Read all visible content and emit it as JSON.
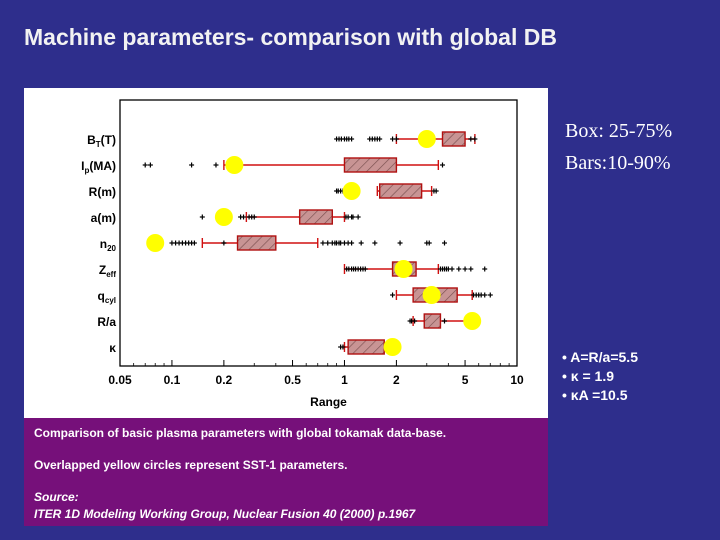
{
  "slide": {
    "title": "Machine parameters- comparison with global DB"
  },
  "legend_note": {
    "box": "Box: 25-75%",
    "bars": "Bars:10-90%"
  },
  "facts": [
    "• A=R/a=5.5",
    "• κ = 1.9",
    "• κA =10.5"
  ],
  "caption": {
    "line1": "Comparison of basic plasma parameters with global tokamak data-base.",
    "line2": "Overlapped yellow circles represent SST-1 parameters.",
    "line3": "Source:",
    "line4": "ITER 1D Modeling Working Group, Nuclear Fusion 40 (2000) p.1967"
  },
  "chart_data": {
    "type": "boxplot",
    "xlabel": "Range",
    "x_scale": "log",
    "xlim": [
      0.05,
      10
    ],
    "x_ticks": [
      0.05,
      0.1,
      0.2,
      0.5,
      1,
      2,
      5,
      10
    ],
    "x_tick_labels": [
      "0.05",
      "0.1",
      "0.2",
      "0.5",
      "1",
      "2",
      "5",
      "10"
    ],
    "box_fill": "#c89494",
    "box_stroke": "#b01010",
    "whisker_color": "#d01010",
    "sst1_marker_color": "#ffff00",
    "rows": [
      {
        "label": "B",
        "sub": "T",
        "suffix": "(T)",
        "q10": 2.0,
        "q25": 3.7,
        "q75": 5.0,
        "q90": 5.7,
        "outliers": [
          0.9,
          0.93,
          0.96,
          1.0,
          1.03,
          1.06,
          1.1,
          1.4,
          1.45,
          1.5,
          1.55,
          1.6,
          1.9,
          2.0,
          5.4,
          5.7
        ],
        "sst1": 3.0
      },
      {
        "label": "I",
        "sub": "p",
        "suffix": "(MA)",
        "q10": 0.2,
        "q25": 1.0,
        "q75": 2.0,
        "q90": 3.5,
        "outliers": [
          0.07,
          0.075,
          0.13,
          0.18,
          3.7
        ],
        "sst1": 0.23
      },
      {
        "label": "R(m)",
        "sub": "",
        "suffix": "",
        "q10": 1.55,
        "q25": 1.6,
        "q75": 2.8,
        "q90": 3.2,
        "outliers": [
          0.9,
          0.92,
          0.95,
          0.98,
          3.3,
          3.4
        ],
        "sst1": 1.1
      },
      {
        "label": "a(m)",
        "sub": "",
        "suffix": "",
        "q10": 0.27,
        "q25": 0.55,
        "q75": 0.85,
        "q90": 1.0,
        "outliers": [
          0.15,
          0.25,
          0.26,
          0.28,
          0.29,
          0.3,
          1.02,
          1.05,
          1.1,
          1.12,
          1.2
        ],
        "sst1": 0.2
      },
      {
        "label": "n",
        "sub": "20",
        "suffix": "",
        "q10": 0.15,
        "q25": 0.24,
        "q75": 0.4,
        "q90": 0.7,
        "outliers": [
          0.1,
          0.105,
          0.11,
          0.115,
          0.12,
          0.125,
          0.13,
          0.135,
          0.2,
          0.75,
          0.8,
          0.85,
          0.88,
          0.9,
          0.93,
          0.95,
          1.0,
          1.05,
          1.1,
          1.25,
          1.5,
          2.1,
          3.0,
          3.1,
          3.8
        ],
        "sst1": 0.08
      },
      {
        "label": "Z",
        "sub": "eff",
        "suffix": "",
        "q10": 1.0,
        "q25": 1.9,
        "q75": 2.6,
        "q90": 3.5,
        "outliers": [
          1.03,
          1.06,
          1.1,
          1.13,
          1.16,
          1.2,
          1.24,
          1.28,
          1.32,
          3.6,
          3.7,
          3.8,
          3.9,
          4.0,
          4.2,
          4.6,
          5.0,
          5.4,
          6.5
        ],
        "sst1": 2.2
      },
      {
        "label": "q",
        "sub": "cyl",
        "suffix": "",
        "q10": 2.0,
        "q25": 2.5,
        "q75": 4.5,
        "q90": 5.5,
        "outliers": [
          1.9,
          5.6,
          5.8,
          6.0,
          6.2,
          6.5,
          7.0
        ],
        "sst1": 3.2
      },
      {
        "label": "R/a",
        "sub": "",
        "suffix": "",
        "q10": 2.5,
        "q25": 2.9,
        "q75": 3.6,
        "q90": 5.5,
        "outliers": [
          2.4,
          2.45,
          2.55,
          3.8
        ],
        "sst1": 5.5
      },
      {
        "label": "κ",
        "sub": "",
        "suffix": "",
        "q10": 1.0,
        "q25": 1.05,
        "q75": 1.7,
        "q90": 1.8,
        "outliers": [
          0.95,
          0.98,
          1.85,
          1.9
        ],
        "sst1": 1.9
      }
    ]
  }
}
